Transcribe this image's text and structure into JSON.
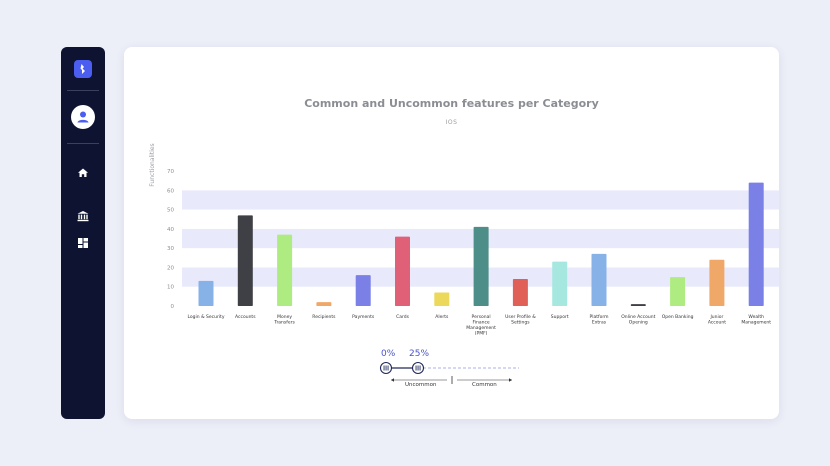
{
  "sidebar": {
    "icons": [
      "logo-icon",
      "user-icon",
      "home-icon",
      "bank-icon",
      "dashboard-icon"
    ]
  },
  "colors": {
    "sidebar_bg": "#0d1330",
    "accent": "#4b5ef0",
    "band": "#e8eafc"
  },
  "chart_data": {
    "type": "bar",
    "title": "Common and Uncommon features per Category",
    "subtitle": "IOS",
    "ylabel": "Functionalities",
    "xlabel": "",
    "ylim": [
      0,
      70
    ],
    "yticks": [
      0,
      10,
      20,
      30,
      40,
      50,
      60,
      70
    ],
    "grid": "alternating horizontal bands",
    "categories": [
      [
        "Login & Security"
      ],
      [
        "Accounts"
      ],
      [
        "Money",
        "Transfers"
      ],
      [
        "Recipients"
      ],
      [
        "Payments"
      ],
      [
        "Cards"
      ],
      [
        "Alerts"
      ],
      [
        "Personal",
        "Finance",
        "Management",
        "(PMF)"
      ],
      [
        "User Profile &",
        "Settings"
      ],
      [
        "Support"
      ],
      [
        "Platform",
        "Extras"
      ],
      [
        "Online Account",
        "Opening"
      ],
      [
        "Open Banking"
      ],
      [
        "Junior",
        "Account"
      ],
      [
        "Wealth",
        "Management"
      ]
    ],
    "values": [
      13,
      47,
      37,
      2,
      16,
      36,
      7,
      41,
      14,
      23,
      27,
      1,
      15,
      24,
      64
    ],
    "bar_colors": [
      "#86b2e8",
      "#3f3f46",
      "#aeeb80",
      "#f0a868",
      "#7b80e6",
      "#e06078",
      "#ecd85a",
      "#4d8e88",
      "#e06058",
      "#a6e8e0",
      "#86b2e8",
      "#3f3f46",
      "#aeeb80",
      "#f0a868",
      "#7b80e6"
    ]
  },
  "range_filter": {
    "min_label": "0%",
    "max_label": "25%",
    "uncommon_label": "Uncommon",
    "common_label": "Common"
  }
}
